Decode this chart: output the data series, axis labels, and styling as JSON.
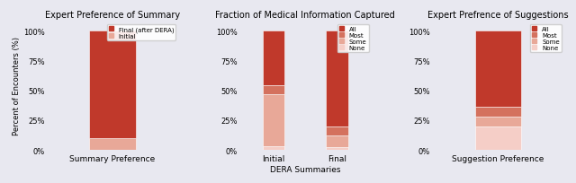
{
  "chart1": {
    "title": "Expert Preference of Summary",
    "xlabel": "Summary Preference",
    "ylabel": "Percent of Encounters (%)",
    "categories": [
      "Summary Preference"
    ],
    "series": {
      "Initial": 0.1,
      "Final (after DERA)": 0.9
    },
    "colors": {
      "Initial": "#e8a898",
      "Final (after DERA)": "#c0392b"
    },
    "legend_order": [
      "Final (after DERA)",
      "Initial"
    ]
  },
  "chart2": {
    "title": "Fraction of Medical Information Captured",
    "xlabel": "DERA Summaries",
    "ylabel": "",
    "categories": [
      "Initial",
      "Final"
    ],
    "series": {
      "None": [
        0.03,
        0.02
      ],
      "Some": [
        0.44,
        0.1
      ],
      "Most": [
        0.07,
        0.08
      ],
      "All": [
        0.46,
        0.8
      ]
    },
    "colors": {
      "None": "#f5cec7",
      "Some": "#e8a898",
      "Most": "#d4715e",
      "All": "#c0392b"
    },
    "legend_order": [
      "All",
      "Most",
      "Some",
      "None"
    ]
  },
  "chart3": {
    "title": "Expert Prefrence of Suggestions",
    "xlabel": "Suggestion Preference",
    "ylabel": "",
    "categories": [
      "Suggestion Preference"
    ],
    "series": {
      "None": 0.2,
      "Some": 0.08,
      "Most": 0.08,
      "All": 0.64
    },
    "colors": {
      "None": "#f5cec7",
      "Some": "#e8a898",
      "Most": "#d4715e",
      "All": "#c0392b"
    },
    "legend_order": [
      "All",
      "Most",
      "Some",
      "None"
    ]
  },
  "yticks": [
    0,
    0.25,
    0.5,
    0.75,
    1.0
  ],
  "yticklabels": [
    "0%",
    "25%",
    "50%",
    "75%",
    "100%"
  ],
  "background_color": "#e8e8f0",
  "bar_width": 0.35
}
